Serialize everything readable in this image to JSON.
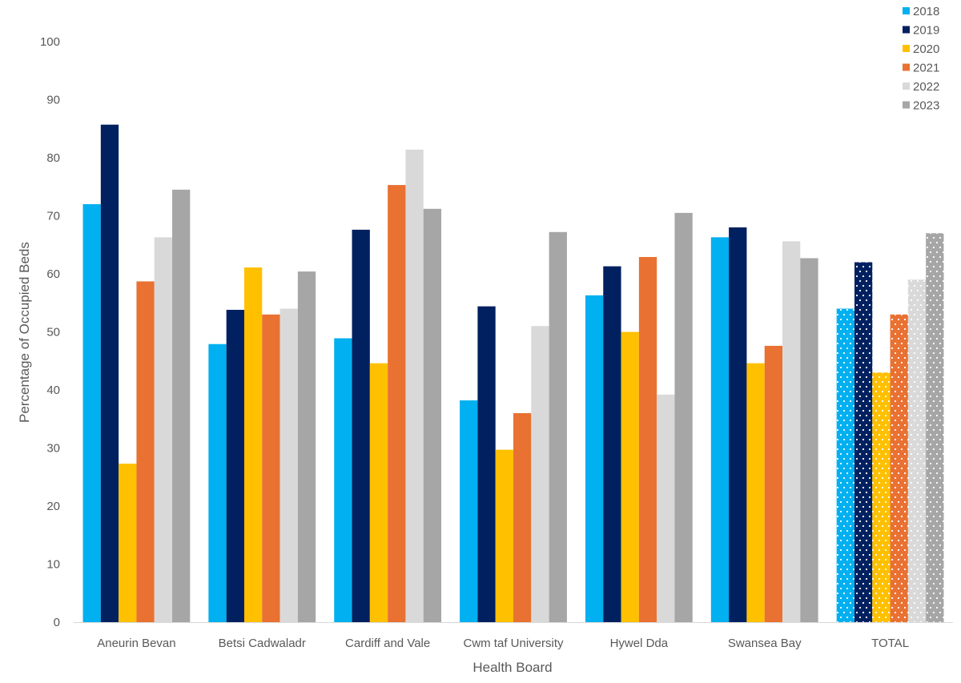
{
  "chart_data": {
    "type": "bar",
    "title": "",
    "xlabel": "Health Board",
    "ylabel": "Percentage of Occupied Beds",
    "ylim": [
      0,
      100
    ],
    "yticks": [
      0,
      10,
      20,
      30,
      40,
      50,
      60,
      70,
      80,
      90,
      100
    ],
    "grid": false,
    "legend_position": "top-right",
    "categories": [
      "Aneurin Bevan",
      "Betsi Cadwaladr",
      "Cardiff and Vale",
      "Cwm taf University",
      "Hywel Dda",
      "Swansea Bay",
      "TOTAL"
    ],
    "patterned_categories": [
      "TOTAL"
    ],
    "series": [
      {
        "name": "2018",
        "color": "#00B0F0",
        "values": [
          72.0,
          47.9,
          48.9,
          38.2,
          56.3,
          66.3,
          54
        ]
      },
      {
        "name": "2019",
        "color": "#002060",
        "values": [
          85.7,
          53.8,
          67.6,
          54.4,
          61.3,
          68.0,
          62
        ]
      },
      {
        "name": "2020",
        "color": "#FFC000",
        "values": [
          27.3,
          61.1,
          44.6,
          29.7,
          50.0,
          44.6,
          43
        ]
      },
      {
        "name": "2021",
        "color": "#E97132",
        "values": [
          58.7,
          53.0,
          75.3,
          36.0,
          62.9,
          47.6,
          53
        ]
      },
      {
        "name": "2022",
        "color": "#D9D9D9",
        "values": [
          66.3,
          54.0,
          81.4,
          51.0,
          39.2,
          65.6,
          59
        ]
      },
      {
        "name": "2023",
        "color": "#A6A6A6",
        "values": [
          74.5,
          60.4,
          71.2,
          67.2,
          70.5,
          62.7,
          67
        ]
      }
    ]
  }
}
